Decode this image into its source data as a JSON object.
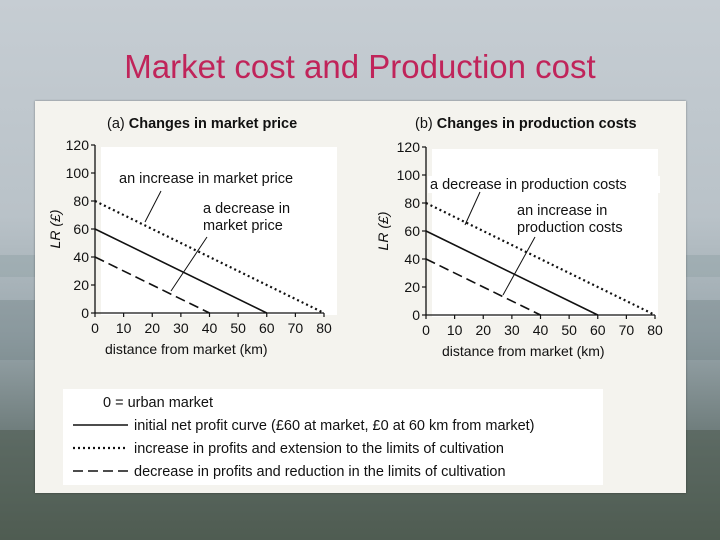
{
  "slide": {
    "title": "Market cost and Production cost"
  },
  "chart_data": [
    {
      "type": "line",
      "panel_letter": "(a)",
      "title": "Changes in market price",
      "xlabel": "distance from market (km)",
      "ylabel": "LR (£)",
      "xlim": [
        0,
        80
      ],
      "ylim": [
        0,
        120
      ],
      "x_ticks": [
        0,
        10,
        20,
        30,
        40,
        50,
        60,
        70,
        80
      ],
      "y_ticks": [
        0,
        20,
        40,
        60,
        80,
        100,
        120
      ],
      "series": [
        {
          "style": "solid",
          "x": [
            0,
            60
          ],
          "y": [
            60,
            0
          ]
        },
        {
          "style": "dotted",
          "x": [
            0,
            80
          ],
          "y": [
            80,
            0
          ]
        },
        {
          "style": "dashed",
          "x": [
            0,
            40
          ],
          "y": [
            40,
            0
          ]
        }
      ],
      "annotations": [
        {
          "text": "an increase in market price"
        },
        {
          "text": "a decrease in"
        },
        {
          "text": "market price"
        }
      ]
    },
    {
      "type": "line",
      "panel_letter": "(b)",
      "title": "Changes in production costs",
      "xlabel": "distance from market (km)",
      "ylabel": "LR (£)",
      "xlim": [
        0,
        80
      ],
      "ylim": [
        0,
        120
      ],
      "x_ticks": [
        0,
        10,
        20,
        30,
        40,
        50,
        60,
        70,
        80
      ],
      "y_ticks": [
        0,
        20,
        40,
        60,
        80,
        100,
        120
      ],
      "series": [
        {
          "style": "solid",
          "x": [
            0,
            60
          ],
          "y": [
            60,
            0
          ]
        },
        {
          "style": "dotted",
          "x": [
            0,
            80
          ],
          "y": [
            80,
            0
          ]
        },
        {
          "style": "dashed",
          "x": [
            0,
            40
          ],
          "y": [
            40,
            0
          ]
        }
      ],
      "annotations": [
        {
          "text": "a decrease in production costs"
        },
        {
          "text": "an increase in"
        },
        {
          "text": "production costs"
        }
      ]
    }
  ],
  "legend": {
    "zero_note": "0 = urban market",
    "items": [
      {
        "style": "solid",
        "label": "initial net profit curve (£60 at market, £0 at 60 km from market)"
      },
      {
        "style": "dotted",
        "label": "increase in profits and extension to the limits of cultivation"
      },
      {
        "style": "dashed",
        "label": "decrease in profits and reduction in the limits of cultivation"
      }
    ]
  },
  "colors": {
    "title": "#c0245a",
    "ink": "#111111",
    "figure_bg": "#f4f3ee",
    "panel_bg": "#ffffff"
  }
}
